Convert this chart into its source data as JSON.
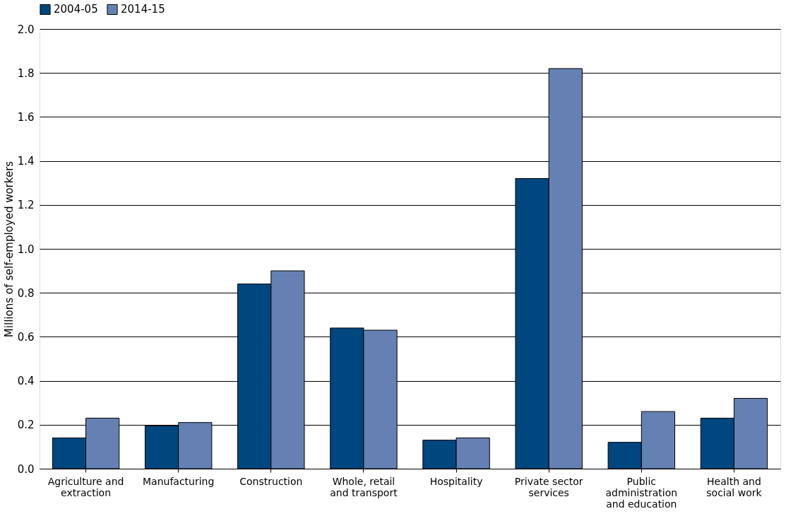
{
  "chart_data": {
    "type": "bar",
    "ylabel": "Millions of self-employed workers",
    "categories": [
      "Agriculture and extraction",
      "Manufacturing",
      "Construction",
      "Whole, retail and transport",
      "Hospitality",
      "Private sector services",
      "Public administration and education",
      "Health and social work"
    ],
    "series": [
      {
        "name": "2004-05",
        "color": "#00467f",
        "values": [
          0.14,
          0.195,
          0.84,
          0.64,
          0.13,
          1.32,
          0.12,
          0.23
        ]
      },
      {
        "name": "2014-15",
        "color": "#6581b3",
        "values": [
          0.23,
          0.21,
          0.9,
          0.63,
          0.14,
          1.82,
          0.26,
          0.32
        ]
      }
    ],
    "ylim": [
      0,
      2.0
    ],
    "yticks": [
      {
        "value": 0,
        "label": "0.0"
      },
      0.2,
      0.4,
      0.6,
      0.8,
      {
        "value": 1,
        "label": "1.0"
      },
      1.2,
      1.4,
      1.6,
      1.8,
      {
        "value": 2,
        "label": "2.0"
      }
    ],
    "grid": "y",
    "legend": "top"
  }
}
